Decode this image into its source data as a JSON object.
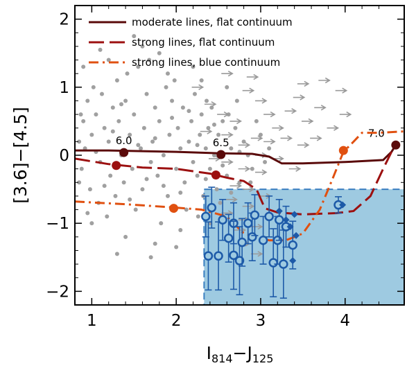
{
  "chart_data": {
    "type": "scatter",
    "xlabel_main": "I",
    "xlabel_sub1": "814",
    "xlabel_mid": "−J",
    "xlabel_sub2": "125",
    "ylabel": "[3.6]−[4.5]",
    "xlim": [
      0.8,
      4.7
    ],
    "ylim": [
      -2.2,
      2.2
    ],
    "x_ticks": [
      1,
      2,
      3,
      4
    ],
    "y_ticks": [
      2,
      1,
      0,
      -1,
      -2
    ],
    "x_tick_labels": [
      "1",
      "2",
      "3",
      "4"
    ],
    "y_tick_labels": [
      "2",
      "1",
      "0",
      "−1",
      "−2"
    ],
    "legend": {
      "placement": "top-right",
      "entries": [
        {
          "label": "moderate lines, flat continuum",
          "color": "#5a0a0a",
          "style": "solid"
        },
        {
          "label": "strong lines, flat continuum",
          "color": "#9c1010",
          "style": "dashed"
        },
        {
          "label": "strong lines, blue continuum",
          "color": "#e05010",
          "style": "dashdot"
        }
      ]
    },
    "selection_region": {
      "x": [
        2.33,
        4.7
      ],
      "y": [
        -2.2,
        -0.5
      ],
      "color": "#9ecae1"
    },
    "series": [
      {
        "style": "solid",
        "color": "#5a0a0a",
        "points": [
          [
            0.8,
            0.07
          ],
          [
            1.2,
            0.07
          ],
          [
            1.6,
            0.06
          ],
          [
            2.0,
            0.05
          ],
          [
            2.5,
            0.03
          ],
          [
            2.9,
            0.02
          ],
          [
            3.1,
            -0.02
          ],
          [
            3.25,
            -0.12
          ],
          [
            3.5,
            -0.12
          ],
          [
            4.0,
            -0.1
          ],
          [
            4.45,
            -0.07
          ],
          [
            4.55,
            0.05
          ],
          [
            4.6,
            0.15
          ]
        ],
        "markers": [
          {
            "x": 1.38,
            "y": 0.04,
            "label": "6.0"
          },
          {
            "x": 2.53,
            "y": 0.01,
            "label": "6.5"
          },
          {
            "x": 4.6,
            "y": 0.15,
            "label": "7.0"
          }
        ]
      },
      {
        "style": "dashed",
        "color": "#9c1010",
        "points": [
          [
            0.8,
            -0.05
          ],
          [
            1.2,
            -0.13
          ],
          [
            1.6,
            -0.18
          ],
          [
            2.0,
            -0.2
          ],
          [
            2.4,
            -0.27
          ],
          [
            2.6,
            -0.33
          ],
          [
            2.8,
            -0.38
          ],
          [
            2.95,
            -0.5
          ],
          [
            3.05,
            -0.78
          ],
          [
            3.2,
            -0.84
          ],
          [
            3.5,
            -0.87
          ],
          [
            3.9,
            -0.85
          ],
          [
            4.1,
            -0.82
          ],
          [
            4.3,
            -0.6
          ],
          [
            4.45,
            -0.2
          ],
          [
            4.55,
            0.05
          ]
        ],
        "markers": [
          {
            "x": 1.29,
            "y": -0.15
          },
          {
            "x": 2.47,
            "y": -0.29
          }
        ]
      },
      {
        "style": "dashdot",
        "color": "#e05010",
        "points": [
          [
            0.8,
            -0.68
          ],
          [
            1.4,
            -0.72
          ],
          [
            2.0,
            -0.77
          ],
          [
            2.3,
            -0.8
          ],
          [
            2.6,
            -0.9
          ],
          [
            2.8,
            -1.15
          ],
          [
            3.1,
            -1.25
          ],
          [
            3.3,
            -1.25
          ],
          [
            3.5,
            -1.15
          ],
          [
            3.7,
            -0.8
          ],
          [
            3.85,
            -0.35
          ],
          [
            3.98,
            0.05
          ],
          [
            4.1,
            0.2
          ],
          [
            4.2,
            0.33
          ],
          [
            4.4,
            0.33
          ],
          [
            4.7,
            0.35
          ]
        ],
        "markers": [
          {
            "x": 1.97,
            "y": -0.78
          },
          {
            "x": 3.98,
            "y": 0.07
          }
        ]
      }
    ],
    "cluster_color": "#1d5aa8",
    "clusters": [
      {
        "x": 2.35,
        "y": -0.9,
        "yerr": 0.3
      },
      {
        "x": 2.42,
        "y": -0.77,
        "yerr": 0.3
      },
      {
        "x": 2.38,
        "y": -1.48,
        "yerr": 0.5
      },
      {
        "x": 2.5,
        "y": -1.48,
        "yerr": 0.5
      },
      {
        "x": 2.55,
        "y": -0.95,
        "yerr": 0.3
      },
      {
        "x": 2.62,
        "y": -1.22,
        "yerr": 0.35
      },
      {
        "x": 2.68,
        "y": -1.0,
        "yerr": 0.3
      },
      {
        "x": 2.68,
        "y": -1.47,
        "yerr": 0.5
      },
      {
        "x": 2.75,
        "y": -1.55,
        "yerr": 0.5
      },
      {
        "x": 2.78,
        "y": -1.28,
        "yerr": 0.35
      },
      {
        "x": 2.85,
        "y": -1.0,
        "yerr": 0.3
      },
      {
        "x": 2.9,
        "y": -1.2,
        "yerr": 0.35
      },
      {
        "x": 2.93,
        "y": -0.88,
        "yerr": 0.3
      },
      {
        "x": 3.03,
        "y": -1.25,
        "yerr": 0.35
      },
      {
        "x": 3.1,
        "y": -0.9,
        "yerr": 0.3
      },
      {
        "x": 3.15,
        "y": -1.58,
        "yerr": 0.5
      },
      {
        "x": 3.2,
        "y": -1.25,
        "yerr": 0.35
      },
      {
        "x": 3.22,
        "y": -0.95,
        "yerr": 0.3
      },
      {
        "x": 3.3,
        "y": -1.05,
        "yerr": 0.3
      },
      {
        "x": 3.27,
        "y": -1.6,
        "yerr": 0.5
      },
      {
        "x": 3.38,
        "y": -1.32,
        "yerr": 0.35
      },
      {
        "x": 3.92,
        "y": -0.73,
        "yerr": 0.12
      }
    ],
    "limit_points": [
      {
        "x": 3.22,
        "y": -0.82
      },
      {
        "x": 3.3,
        "y": -0.95
      },
      {
        "x": 3.35,
        "y": -1.05
      },
      {
        "x": 3.4,
        "y": -0.87
      },
      {
        "x": 3.42,
        "y": -1.18
      },
      {
        "x": 3.38,
        "y": -1.55
      },
      {
        "x": 3.97,
        "y": -0.73
      }
    ],
    "field_color": "#a0a0a0",
    "field_points": [
      [
        0.9,
        0.5
      ],
      [
        0.95,
        0.8
      ],
      [
        1.0,
        0.3
      ],
      [
        1.05,
        0.6
      ],
      [
        1.1,
        -0.1
      ],
      [
        1.12,
        0.9
      ],
      [
        1.15,
        0.4
      ],
      [
        1.2,
        0.2
      ],
      [
        1.22,
        -0.3
      ],
      [
        1.25,
        0.7
      ],
      [
        1.3,
        1.1
      ],
      [
        1.32,
        0.5
      ],
      [
        1.35,
        0.0
      ],
      [
        1.38,
        -0.4
      ],
      [
        1.4,
        0.8
      ],
      [
        1.45,
        0.3
      ],
      [
        1.48,
        -0.2
      ],
      [
        1.5,
        0.6
      ],
      [
        1.55,
        1.3
      ],
      [
        1.58,
        0.1
      ],
      [
        1.6,
        -0.5
      ],
      [
        1.62,
        0.4
      ],
      [
        1.65,
        0.9
      ],
      [
        1.7,
        -0.1
      ],
      [
        1.72,
        0.2
      ],
      [
        1.75,
        0.7
      ],
      [
        1.78,
        -0.3
      ],
      [
        1.8,
        0.5
      ],
      [
        1.85,
        0.0
      ],
      [
        1.88,
        1.0
      ],
      [
        1.9,
        -0.6
      ],
      [
        1.92,
        0.3
      ],
      [
        1.95,
        0.8
      ],
      [
        2.0,
        -0.2
      ],
      [
        2.02,
        0.4
      ],
      [
        2.05,
        0.1
      ],
      [
        2.08,
        0.7
      ],
      [
        2.1,
        -0.4
      ],
      [
        2.15,
        0.2
      ],
      [
        2.18,
        0.5
      ],
      [
        2.2,
        -0.1
      ],
      [
        2.22,
        0.9
      ],
      [
        2.25,
        -0.3
      ],
      [
        2.28,
        0.3
      ],
      [
        2.3,
        0.6
      ],
      [
        2.32,
        -0.6
      ],
      [
        2.35,
        0.1
      ],
      [
        2.38,
        0.4
      ],
      [
        2.4,
        -0.2
      ],
      [
        2.42,
        0.7
      ],
      [
        2.45,
        0.0
      ],
      [
        2.48,
        -0.5
      ],
      [
        2.5,
        0.3
      ],
      [
        2.55,
        0.5
      ],
      [
        2.6,
        -0.3
      ],
      [
        2.65,
        0.1
      ],
      [
        2.7,
        0.4
      ],
      [
        2.75,
        -0.4
      ],
      [
        2.8,
        0.2
      ],
      [
        0.88,
        -0.2
      ],
      [
        0.92,
        0.1
      ],
      [
        0.98,
        -0.5
      ],
      [
        1.02,
        1.0
      ],
      [
        1.08,
        -0.7
      ],
      [
        1.18,
        -0.9
      ],
      [
        1.28,
        -0.6
      ],
      [
        1.42,
        1.2
      ],
      [
        1.52,
        -0.8
      ],
      [
        1.68,
        1.4
      ],
      [
        1.82,
        -1.0
      ],
      [
        1.98,
        1.1
      ],
      [
        2.12,
        -0.8
      ],
      [
        2.26,
        -0.9
      ],
      [
        2.36,
        0.8
      ],
      [
        2.52,
        -0.7
      ],
      [
        2.62,
        0.6
      ],
      [
        2.72,
        0.8
      ],
      [
        0.9,
        1.3
      ],
      [
        1.0,
        -1.0
      ],
      [
        1.2,
        1.4
      ],
      [
        1.4,
        -1.2
      ],
      [
        1.6,
        1.6
      ],
      [
        1.75,
        -1.3
      ],
      [
        1.9,
        1.2
      ],
      [
        2.05,
        -1.1
      ],
      [
        2.2,
        1.3
      ],
      [
        2.4,
        -1.0
      ],
      [
        2.6,
        1.0
      ],
      [
        2.85,
        0.0
      ],
      [
        2.9,
        -0.2
      ],
      [
        3.0,
        0.3
      ],
      [
        1.05,
        0.05
      ],
      [
        1.15,
        -0.45
      ],
      [
        1.25,
        0.35
      ],
      [
        1.35,
        0.75
      ],
      [
        1.45,
        -0.65
      ],
      [
        1.55,
        0.15
      ],
      [
        1.65,
        -0.35
      ],
      [
        1.75,
        0.25
      ],
      [
        1.85,
        -0.45
      ],
      [
        1.95,
        0.55
      ],
      [
        2.05,
        -0.55
      ],
      [
        2.15,
        0.65
      ],
      [
        2.25,
        0.15
      ],
      [
        2.35,
        -0.35
      ],
      [
        2.45,
        0.45
      ],
      [
        2.55,
        -0.15
      ],
      [
        2.65,
        -0.55
      ],
      [
        2.75,
        0.05
      ],
      [
        0.95,
        -0.85
      ],
      [
        1.1,
        1.55
      ],
      [
        1.3,
        -1.45
      ],
      [
        1.5,
        1.75
      ],
      [
        1.7,
        -1.5
      ],
      [
        1.8,
        1.5
      ],
      [
        2.0,
        -1.35
      ],
      [
        2.3,
        1.1
      ],
      [
        0.85,
        0.2
      ],
      [
        0.85,
        -0.4
      ],
      [
        0.87,
        0.6
      ],
      [
        3.05,
        -0.1
      ],
      [
        3.1,
        0.1
      ],
      [
        2.95,
        0.5
      ],
      [
        2.88,
        -0.4
      ]
    ],
    "arrow_points": [
      [
        2.25,
        1.0
      ],
      [
        2.4,
        0.75
      ],
      [
        2.55,
        0.6
      ],
      [
        2.7,
        0.5
      ],
      [
        2.85,
        0.95
      ],
      [
        3.0,
        0.8
      ],
      [
        3.1,
        0.6
      ],
      [
        3.2,
        0.4
      ],
      [
        3.35,
        0.65
      ],
      [
        3.45,
        0.85
      ],
      [
        3.55,
        0.5
      ],
      [
        3.7,
        0.7
      ],
      [
        3.85,
        0.4
      ],
      [
        2.95,
        0.25
      ],
      [
        3.1,
        0.2
      ],
      [
        3.3,
        0.25
      ],
      [
        3.5,
        0.15
      ],
      [
        3.65,
        0.25
      ],
      [
        2.6,
        0.3
      ],
      [
        2.8,
        0.15
      ],
      [
        3.0,
        0.0
      ],
      [
        3.2,
        -0.05
      ],
      [
        2.45,
        -0.05
      ],
      [
        2.6,
        -0.1
      ],
      [
        2.8,
        -0.2
      ],
      [
        3.0,
        -0.25
      ],
      [
        2.7,
        -0.45
      ],
      [
        2.85,
        -0.5
      ],
      [
        2.65,
        -0.65
      ],
      [
        2.85,
        -0.75
      ],
      [
        3.05,
        -0.6
      ],
      [
        2.6,
        -0.85
      ],
      [
        2.8,
        -0.95
      ],
      [
        2.75,
        -1.1
      ],
      [
        2.95,
        -1.05
      ],
      [
        2.8,
        -1.3
      ],
      [
        2.95,
        -1.45
      ],
      [
        2.6,
        1.2
      ],
      [
        2.9,
        1.15
      ],
      [
        3.5,
        1.05
      ],
      [
        3.75,
        1.1
      ],
      [
        3.95,
        0.95
      ],
      [
        4.0,
        0.6
      ],
      [
        2.35,
        0.35
      ],
      [
        3.4,
        -0.2
      ]
    ]
  }
}
